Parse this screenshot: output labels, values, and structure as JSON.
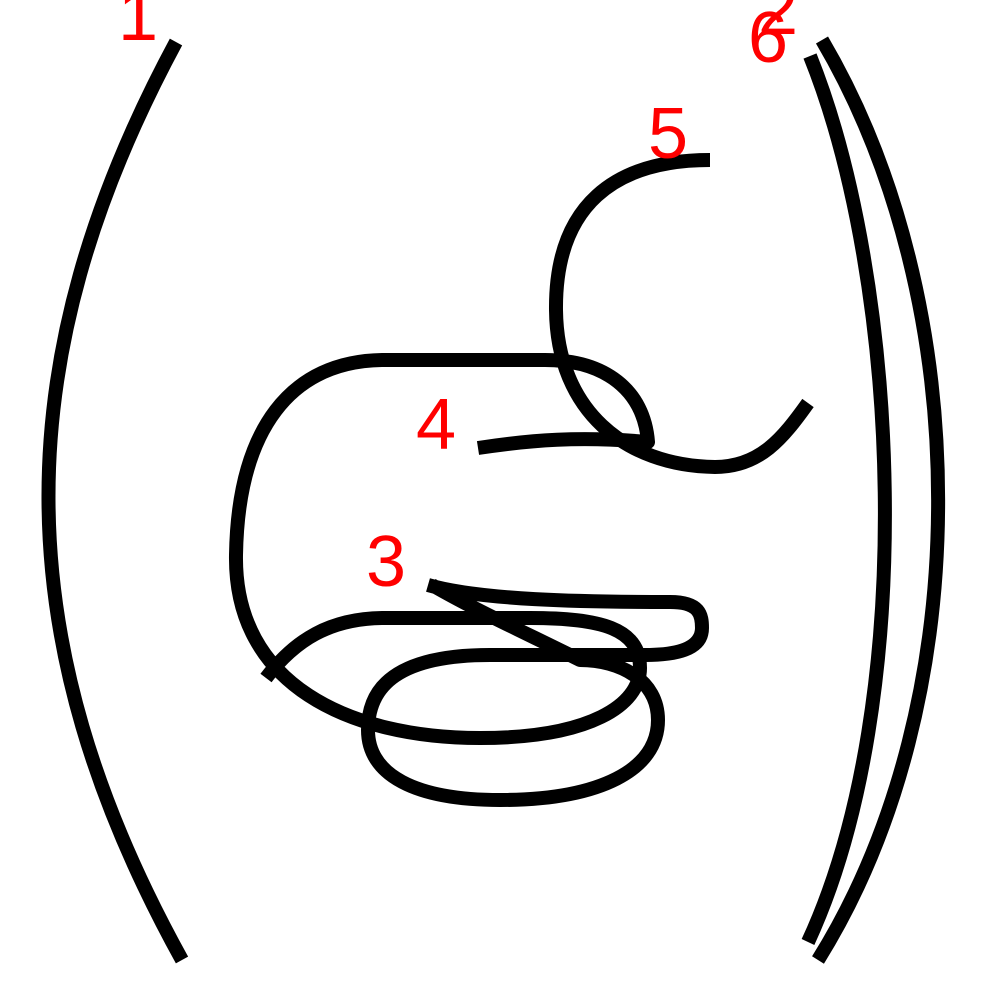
{
  "colors": {
    "background": "#ffffff",
    "stroke": "#000000",
    "label": "#ff0000"
  },
  "strokes": [
    {
      "label": "1"
    },
    {
      "label": "2"
    },
    {
      "label": "3"
    },
    {
      "label": "4"
    },
    {
      "label": "5"
    },
    {
      "label": "6"
    }
  ]
}
